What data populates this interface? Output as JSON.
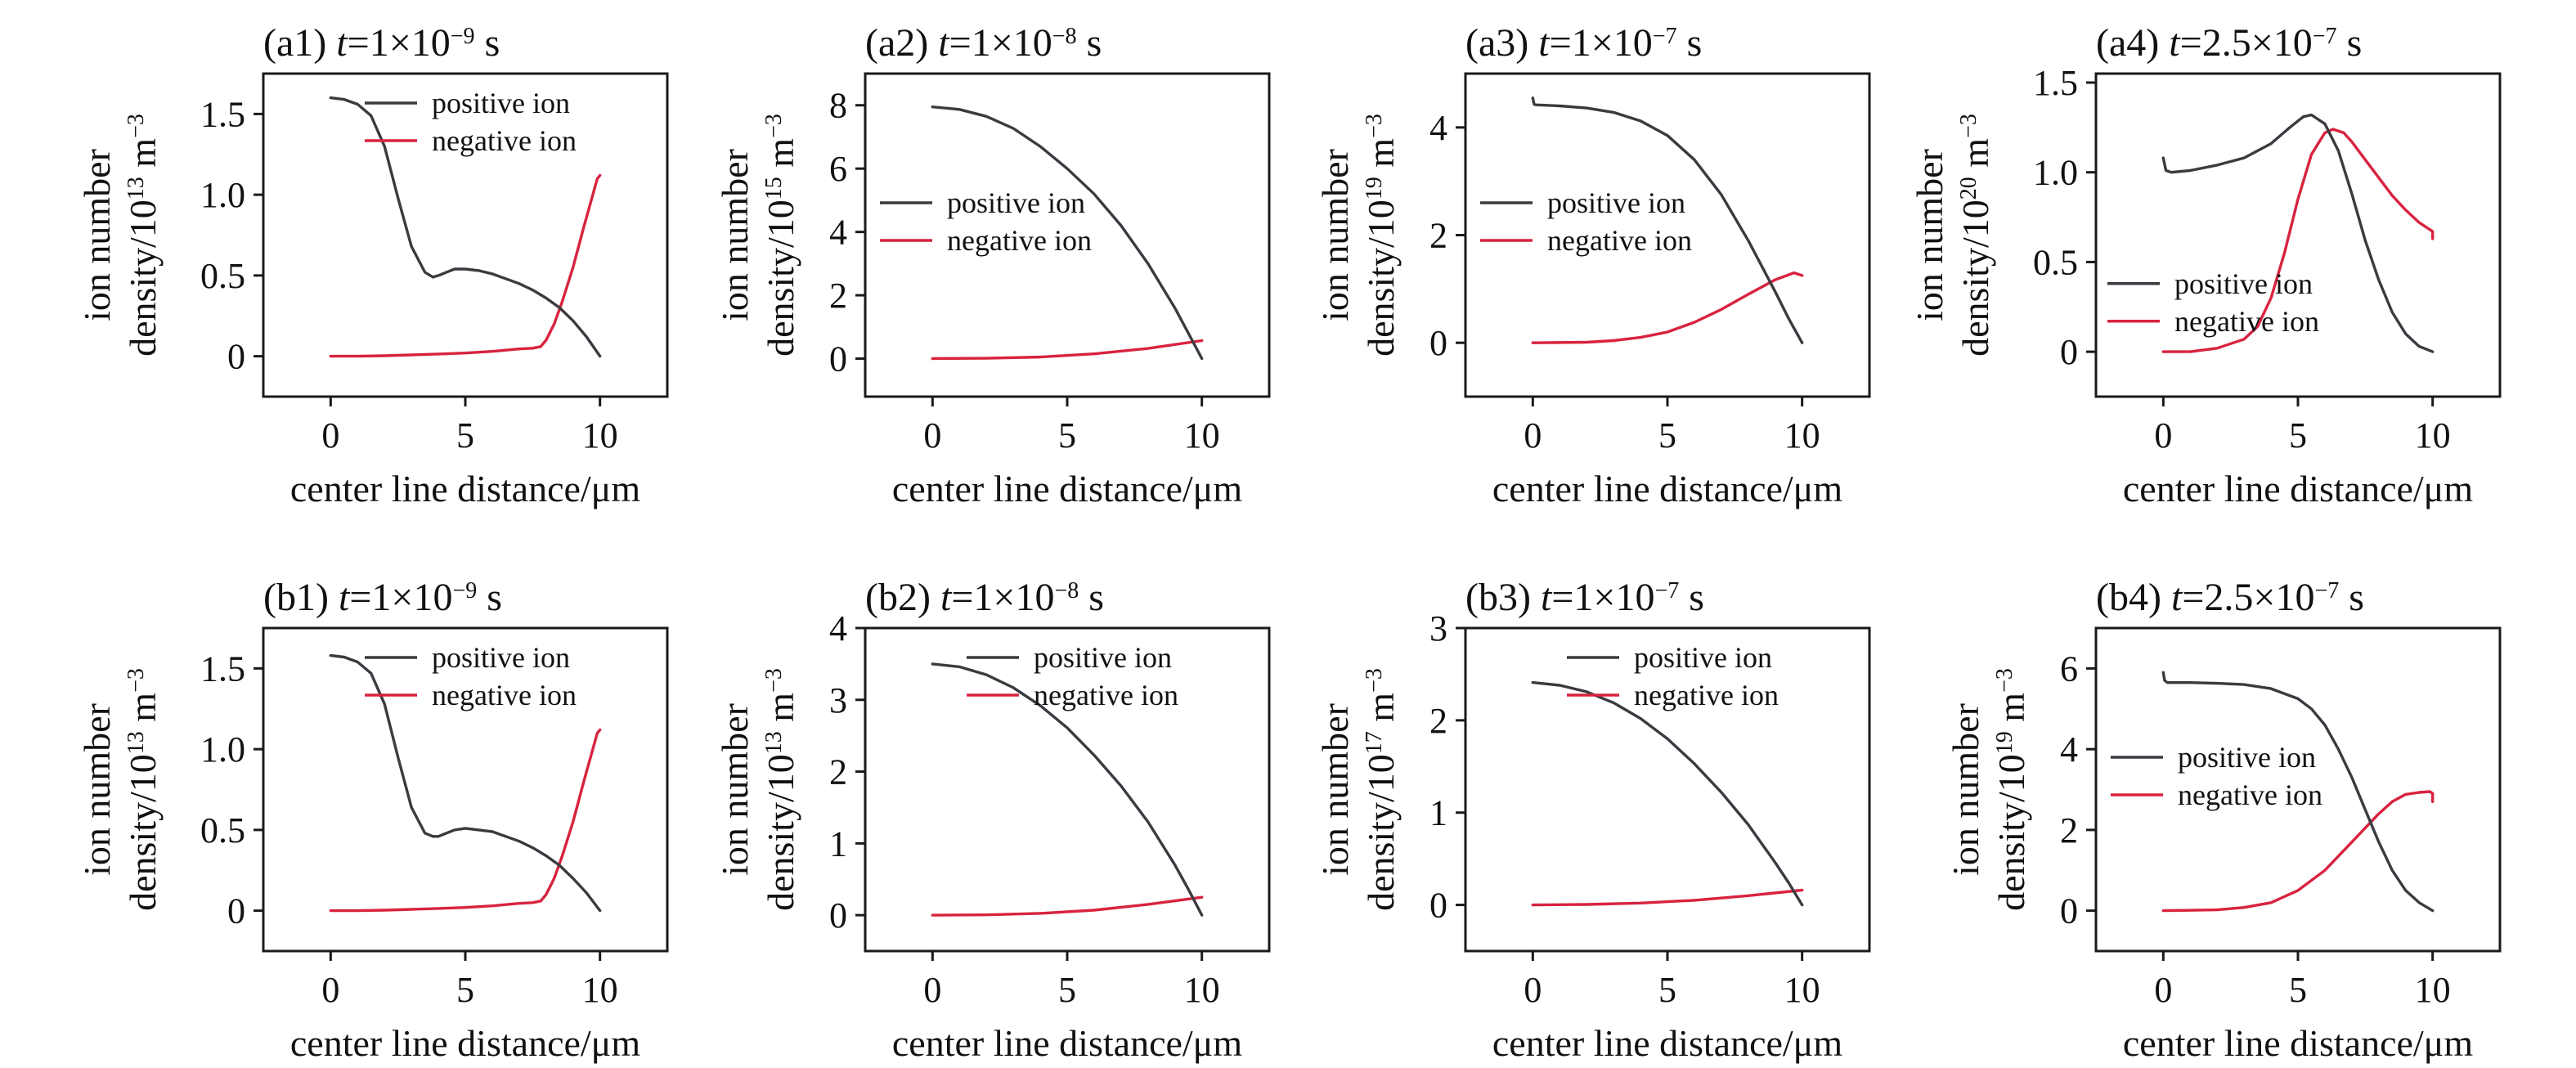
{
  "colors": {
    "positive": "#3a3a40",
    "negative": "#d8233f",
    "axis": "#1a1a1a"
  },
  "chart_data": [
    {
      "id": "a1",
      "type": "line",
      "panel_label": "(a1)",
      "title_t": "t",
      "title_eq": "=1×10",
      "title_exp": "−9",
      "title_unit": " s",
      "xlabel": "center line distance/μm",
      "ylabel_line1": "ion number",
      "ylabel_line2": "density/10",
      "ylabel_exp": "13",
      "ylabel_unit": " m",
      "ylabel_unit_exp": "−3",
      "xlim": [
        -2.5,
        12.5
      ],
      "ylim": [
        -0.25,
        1.75
      ],
      "xticks": [
        0,
        5,
        10
      ],
      "xtick_labels": [
        "0",
        "5",
        "10"
      ],
      "yticks": [
        0,
        0.5,
        1.0,
        1.5
      ],
      "ytick_labels": [
        "0",
        "0.5",
        "1.0",
        "1.5"
      ],
      "legend_position": "top-right",
      "series": [
        {
          "name": "positive ion",
          "color_key": "positive",
          "x": [
            0,
            0.5,
            1,
            1.5,
            2,
            2.5,
            3,
            3.5,
            3.8,
            4,
            4.3,
            4.6,
            5,
            5.5,
            6,
            6.5,
            7,
            7.5,
            8,
            8.5,
            9,
            9.5,
            10
          ],
          "y": [
            1.6,
            1.59,
            1.56,
            1.49,
            1.3,
            0.98,
            0.68,
            0.52,
            0.49,
            0.5,
            0.52,
            0.54,
            0.54,
            0.53,
            0.51,
            0.48,
            0.45,
            0.41,
            0.36,
            0.3,
            0.22,
            0.12,
            0
          ]
        },
        {
          "name": "negative ion",
          "color_key": "negative",
          "x": [
            0,
            1,
            2,
            3,
            4,
            5,
            6,
            7,
            7.5,
            7.8,
            8,
            8.3,
            8.6,
            9,
            9.4,
            9.7,
            9.9,
            10
          ],
          "y": [
            0,
            0,
            0.003,
            0.008,
            0.014,
            0.02,
            0.03,
            0.045,
            0.05,
            0.06,
            0.1,
            0.2,
            0.34,
            0.55,
            0.8,
            0.98,
            1.1,
            1.12
          ]
        }
      ]
    },
    {
      "id": "a2",
      "type": "line",
      "panel_label": "(a2)",
      "title_t": "t",
      "title_eq": "=1×10",
      "title_exp": "−8",
      "title_unit": " s",
      "xlabel": "center line distance/μm",
      "ylabel_line1": "ion number",
      "ylabel_line2": "density/10",
      "ylabel_exp": "15",
      "ylabel_unit": " m",
      "ylabel_unit_exp": "−3",
      "xlim": [
        -2.5,
        12.5
      ],
      "ylim": [
        -1.2,
        9.0
      ],
      "xticks": [
        0,
        5,
        10
      ],
      "xtick_labels": [
        "0",
        "5",
        "10"
      ],
      "yticks": [
        0,
        2,
        4,
        6,
        8
      ],
      "ytick_labels": [
        "0",
        "2",
        "4",
        "6",
        "8"
      ],
      "legend_position": "center-left",
      "series": [
        {
          "name": "positive ion",
          "color_key": "positive",
          "x": [
            0,
            1,
            2,
            3,
            4,
            5,
            6,
            7,
            8,
            9,
            9.5,
            10
          ],
          "y": [
            7.95,
            7.87,
            7.65,
            7.27,
            6.7,
            6.0,
            5.2,
            4.2,
            3.0,
            1.6,
            0.8,
            0
          ]
        },
        {
          "name": "negative ion",
          "color_key": "negative",
          "x": [
            0,
            2,
            4,
            6,
            8,
            10
          ],
          "y": [
            0,
            0.01,
            0.05,
            0.15,
            0.32,
            0.57
          ]
        }
      ]
    },
    {
      "id": "a3",
      "type": "line",
      "panel_label": "(a3)",
      "title_t": "t",
      "title_eq": "=1×10",
      "title_exp": "−7",
      "title_unit": " s",
      "xlabel": "center line distance/μm",
      "ylabel_line1": "ion number",
      "ylabel_line2": "density/10",
      "ylabel_exp": "19",
      "ylabel_unit": " m",
      "ylabel_unit_exp": "−3",
      "xlim": [
        -2.5,
        12.5
      ],
      "ylim": [
        -1.0,
        5.0
      ],
      "xticks": [
        0,
        5,
        10
      ],
      "xtick_labels": [
        "0",
        "5",
        "10"
      ],
      "yticks": [
        0,
        2,
        4
      ],
      "ytick_labels": [
        "0",
        "2",
        "4"
      ],
      "legend_position": "center-left",
      "series": [
        {
          "name": "positive ion",
          "color_key": "positive",
          "x": [
            0,
            0.05,
            0.1,
            1,
            2,
            3,
            4,
            5,
            6,
            7,
            8,
            9,
            9.5,
            10
          ],
          "y": [
            4.55,
            4.43,
            4.42,
            4.4,
            4.36,
            4.28,
            4.12,
            3.85,
            3.4,
            2.75,
            1.9,
            0.95,
            0.45,
            0
          ]
        },
        {
          "name": "negative ion",
          "color_key": "negative",
          "x": [
            0,
            2,
            3,
            4,
            5,
            6,
            7,
            8,
            9,
            9.7,
            10
          ],
          "y": [
            0,
            0.01,
            0.04,
            0.1,
            0.2,
            0.38,
            0.62,
            0.9,
            1.17,
            1.3,
            1.25
          ]
        }
      ]
    },
    {
      "id": "a4",
      "type": "line",
      "panel_label": "(a4)",
      "title_t": "t",
      "title_eq": "=2.5×10",
      "title_exp": "−7",
      "title_unit": " s",
      "xlabel": "center line distance/μm",
      "ylabel_line1": "ion number",
      "ylabel_line2": "density/10",
      "ylabel_exp": "20",
      "ylabel_unit": " m",
      "ylabel_unit_exp": "−3",
      "xlim": [
        -2.5,
        12.5
      ],
      "ylim": [
        -0.25,
        1.55
      ],
      "xticks": [
        0,
        5,
        10
      ],
      "xtick_labels": [
        "0",
        "5",
        "10"
      ],
      "yticks": [
        0,
        0.5,
        1.0,
        1.5
      ],
      "ytick_labels": [
        "0",
        "0.5",
        "1.0",
        "1.5"
      ],
      "legend_position": "bottom-left",
      "series": [
        {
          "name": "positive ion",
          "color_key": "positive",
          "x": [
            0,
            0.1,
            0.3,
            1,
            2,
            3,
            4,
            4.7,
            5.2,
            5.5,
            6,
            6.5,
            7,
            7.5,
            8,
            8.5,
            9,
            9.5,
            10
          ],
          "y": [
            1.08,
            1.01,
            1.0,
            1.01,
            1.04,
            1.08,
            1.16,
            1.25,
            1.31,
            1.32,
            1.27,
            1.12,
            0.88,
            0.62,
            0.4,
            0.22,
            0.1,
            0.03,
            0
          ]
        },
        {
          "name": "negative ion",
          "color_key": "negative",
          "x": [
            0,
            1,
            2,
            3,
            3.5,
            4,
            4.5,
            5,
            5.5,
            6,
            6.3,
            6.7,
            7,
            7.5,
            8,
            8.5,
            9,
            9.5,
            10,
            10
          ],
          "y": [
            0,
            0,
            0.02,
            0.07,
            0.14,
            0.3,
            0.55,
            0.85,
            1.1,
            1.22,
            1.24,
            1.22,
            1.17,
            1.07,
            0.97,
            0.87,
            0.79,
            0.72,
            0.67,
            0.63
          ]
        }
      ]
    },
    {
      "id": "b1",
      "type": "line",
      "panel_label": "(b1)",
      "title_t": "t",
      "title_eq": "=1×10",
      "title_exp": "−9",
      "title_unit": " s",
      "xlabel": "center line distance/μm",
      "ylabel_line1": "ion number",
      "ylabel_line2": "density/10",
      "ylabel_exp": "13",
      "ylabel_unit": " m",
      "ylabel_unit_exp": "−3",
      "xlim": [
        -2.5,
        12.5
      ],
      "ylim": [
        -0.25,
        1.75
      ],
      "xticks": [
        0,
        5,
        10
      ],
      "xtick_labels": [
        "0",
        "5",
        "10"
      ],
      "yticks": [
        0,
        0.5,
        1.0,
        1.5
      ],
      "ytick_labels": [
        "0",
        "0.5",
        "1.0",
        "1.5"
      ],
      "legend_position": "top-right",
      "series": [
        {
          "name": "positive ion",
          "color_key": "positive",
          "x": [
            0,
            0.5,
            1,
            1.5,
            2,
            2.5,
            3,
            3.5,
            3.8,
            4,
            4.3,
            4.6,
            5,
            5.5,
            6,
            6.5,
            7,
            7.5,
            8,
            8.5,
            9,
            9.5,
            10
          ],
          "y": [
            1.58,
            1.57,
            1.54,
            1.47,
            1.28,
            0.95,
            0.64,
            0.48,
            0.46,
            0.46,
            0.48,
            0.5,
            0.51,
            0.5,
            0.49,
            0.46,
            0.43,
            0.39,
            0.34,
            0.28,
            0.2,
            0.11,
            0
          ]
        },
        {
          "name": "negative ion",
          "color_key": "negative",
          "x": [
            0,
            1,
            2,
            3,
            4,
            5,
            6,
            7,
            7.5,
            7.8,
            8,
            8.3,
            8.6,
            9,
            9.4,
            9.7,
            9.9,
            10
          ],
          "y": [
            0,
            0,
            0.003,
            0.008,
            0.014,
            0.02,
            0.03,
            0.045,
            0.05,
            0.06,
            0.1,
            0.2,
            0.34,
            0.55,
            0.8,
            0.98,
            1.1,
            1.12
          ]
        }
      ]
    },
    {
      "id": "b2",
      "type": "line",
      "panel_label": "(b2)",
      "title_t": "t",
      "title_eq": "=1×10",
      "title_exp": "−8",
      "title_unit": " s",
      "xlabel": "center line distance/μm",
      "ylabel_line1": "ion number",
      "ylabel_line2": "density/10",
      "ylabel_exp": "13",
      "ylabel_unit": " m",
      "ylabel_unit_exp": "−3",
      "xlim": [
        -2.5,
        12.5
      ],
      "ylim": [
        -0.5,
        4.0
      ],
      "xticks": [
        0,
        5,
        10
      ],
      "xtick_labels": [
        "0",
        "5",
        "10"
      ],
      "yticks": [
        0,
        1,
        2,
        3,
        4
      ],
      "ytick_labels": [
        "0",
        "1",
        "2",
        "3",
        "4"
      ],
      "legend_position": "top-right",
      "series": [
        {
          "name": "positive ion",
          "color_key": "positive",
          "x": [
            0,
            1,
            2,
            3,
            4,
            5,
            6,
            7,
            8,
            9,
            9.5,
            10
          ],
          "y": [
            3.5,
            3.46,
            3.35,
            3.17,
            2.92,
            2.61,
            2.23,
            1.8,
            1.3,
            0.7,
            0.36,
            0
          ]
        },
        {
          "name": "negative ion",
          "color_key": "negative",
          "x": [
            0,
            2,
            4,
            6,
            8,
            10
          ],
          "y": [
            0,
            0.005,
            0.025,
            0.07,
            0.15,
            0.25
          ]
        }
      ]
    },
    {
      "id": "b3",
      "type": "line",
      "panel_label": "(b3)",
      "title_t": "t",
      "title_eq": "=1×10",
      "title_exp": "−7",
      "title_unit": " s",
      "xlabel": "center line distance/μm",
      "ylabel_line1": "ion number",
      "ylabel_line2": "density/10",
      "ylabel_exp": "17",
      "ylabel_unit": " m",
      "ylabel_unit_exp": "−3",
      "xlim": [
        -2.5,
        12.5
      ],
      "ylim": [
        -0.5,
        3.0
      ],
      "xticks": [
        0,
        5,
        10
      ],
      "xtick_labels": [
        "0",
        "5",
        "10"
      ],
      "yticks": [
        0,
        1,
        2,
        3
      ],
      "ytick_labels": [
        "0",
        "1",
        "2",
        "3"
      ],
      "legend_position": "top-right",
      "series": [
        {
          "name": "positive ion",
          "color_key": "positive",
          "x": [
            0,
            1,
            2,
            3,
            4,
            5,
            6,
            7,
            8,
            9,
            9.5,
            10
          ],
          "y": [
            2.41,
            2.38,
            2.31,
            2.19,
            2.02,
            1.8,
            1.53,
            1.22,
            0.87,
            0.46,
            0.24,
            0
          ]
        },
        {
          "name": "negative ion",
          "color_key": "negative",
          "x": [
            0,
            2,
            4,
            6,
            8,
            10
          ],
          "y": [
            0,
            0.005,
            0.02,
            0.05,
            0.1,
            0.16
          ]
        }
      ]
    },
    {
      "id": "b4",
      "type": "line",
      "panel_label": "(b4)",
      "title_t": "t",
      "title_eq": "=2.5×10",
      "title_exp": "−7",
      "title_unit": " s",
      "xlabel": "center line distance/μm",
      "ylabel_line1": "ion number",
      "ylabel_line2": "density/10",
      "ylabel_exp": "19",
      "ylabel_unit": " m",
      "ylabel_unit_exp": "−3",
      "xlim": [
        -2.5,
        12.5
      ],
      "ylim": [
        -1.0,
        7.0
      ],
      "xticks": [
        0,
        5,
        10
      ],
      "xtick_labels": [
        "0",
        "5",
        "10"
      ],
      "yticks": [
        0,
        2,
        4,
        6
      ],
      "ytick_labels": [
        "0",
        "2",
        "4",
        "6"
      ],
      "legend_position": "center-left",
      "series": [
        {
          "name": "positive ion",
          "color_key": "positive",
          "x": [
            0,
            0.05,
            0.15,
            1,
            2,
            3,
            4,
            5,
            5.5,
            6,
            6.5,
            7,
            7.5,
            8,
            8.5,
            9,
            9.5,
            10
          ],
          "y": [
            5.9,
            5.7,
            5.65,
            5.65,
            5.63,
            5.6,
            5.5,
            5.25,
            5.0,
            4.6,
            4.0,
            3.3,
            2.5,
            1.7,
            1.0,
            0.5,
            0.2,
            0
          ]
        },
        {
          "name": "negative ion",
          "color_key": "negative",
          "x": [
            0,
            2,
            3,
            4,
            5,
            6,
            7,
            7.5,
            8,
            8.5,
            9,
            9.5,
            9.9,
            10,
            10
          ],
          "y": [
            0,
            0.02,
            0.08,
            0.2,
            0.5,
            1.0,
            1.7,
            2.05,
            2.4,
            2.7,
            2.88,
            2.93,
            2.95,
            2.9,
            2.7
          ]
        }
      ]
    }
  ]
}
